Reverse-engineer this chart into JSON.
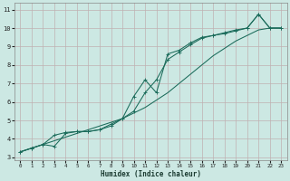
{
  "xlabel": "Humidex (Indice chaleur)",
  "bg_color": "#cce8e3",
  "grid_color": "#c0b0b2",
  "line_color": "#1a6b5a",
  "xlim": [
    -0.5,
    23.5
  ],
  "ylim": [
    2.85,
    11.35
  ],
  "xticks": [
    0,
    1,
    2,
    3,
    4,
    5,
    6,
    7,
    8,
    9,
    10,
    11,
    12,
    13,
    14,
    15,
    16,
    17,
    18,
    19,
    20,
    21,
    22,
    23
  ],
  "yticks": [
    3,
    4,
    5,
    6,
    7,
    8,
    9,
    10,
    11
  ],
  "line1_x": [
    0,
    1,
    2,
    3,
    4,
    5,
    6,
    7,
    8,
    9,
    10,
    11,
    12,
    13,
    14,
    15,
    16,
    17,
    18,
    19,
    20,
    21,
    22,
    23
  ],
  "line1_y": [
    3.3,
    3.5,
    3.7,
    3.6,
    4.3,
    4.4,
    4.4,
    4.5,
    4.7,
    5.1,
    5.5,
    6.5,
    7.2,
    8.3,
    8.7,
    9.1,
    9.45,
    9.6,
    9.7,
    9.85,
    10.0,
    10.75,
    10.0,
    10.0
  ],
  "line2_x": [
    0,
    1,
    2,
    3,
    4,
    5,
    6,
    7,
    8,
    9,
    10,
    11,
    12,
    13,
    14,
    15,
    16,
    17,
    18,
    19,
    20,
    21,
    22,
    23
  ],
  "line2_y": [
    3.3,
    3.5,
    3.7,
    4.2,
    4.35,
    4.4,
    4.4,
    4.5,
    4.8,
    5.1,
    6.3,
    7.2,
    6.5,
    8.6,
    8.8,
    9.2,
    9.5,
    9.6,
    9.75,
    9.9,
    10.0,
    10.75,
    10.0,
    10.0
  ],
  "line3_x": [
    0,
    1,
    2,
    3,
    4,
    5,
    6,
    7,
    8,
    9,
    10,
    11,
    12,
    13,
    14,
    15,
    16,
    17,
    18,
    19,
    20,
    21,
    22,
    23
  ],
  "line3_y": [
    3.3,
    3.5,
    3.7,
    3.9,
    4.1,
    4.3,
    4.5,
    4.7,
    4.9,
    5.1,
    5.4,
    5.7,
    6.1,
    6.5,
    7.0,
    7.5,
    8.0,
    8.5,
    8.9,
    9.3,
    9.6,
    9.9,
    10.0,
    10.0
  ]
}
